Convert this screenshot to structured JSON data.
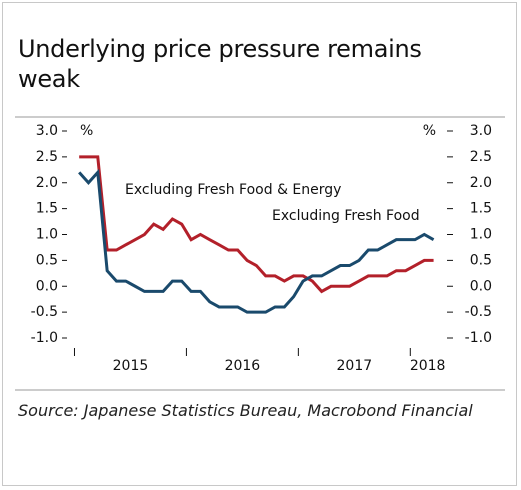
{
  "chart_data": {
    "type": "line",
    "title": "Underlying price pressure remains weak",
    "source": "Source: Japanese Statistics Bureau, Macrobond Financial",
    "y_unit": "%",
    "y2_unit": "%",
    "grid": false,
    "xlim": [
      2014.96,
      2018.31
    ],
    "xticks": [
      2015,
      2016,
      2017,
      2018
    ],
    "ylim": [
      -1,
      3
    ],
    "yticks": [
      {
        "value": 3,
        "label": "3.0"
      },
      2.5,
      {
        "value": 2,
        "label": "2.0"
      },
      1.5,
      {
        "value": 1,
        "label": "1.0"
      },
      0.5,
      {
        "value": 0,
        "label": "0.0"
      },
      -0.5,
      {
        "value": -1,
        "label": "-1.0"
      }
    ],
    "y2lim": [
      -1,
      3
    ],
    "y2ticks": [
      {
        "value": 3,
        "label": "3.0"
      },
      2.5,
      {
        "value": 2,
        "label": "2.0"
      },
      1.5,
      {
        "value": 1,
        "label": "1.0"
      },
      0.5,
      {
        "value": 0,
        "label": "0.0"
      },
      -0.5,
      {
        "value": -1,
        "label": "-1.0"
      }
    ],
    "x": [
      2015.042,
      2015.125,
      2015.208,
      2015.292,
      2015.375,
      2015.458,
      2015.542,
      2015.625,
      2015.708,
      2015.792,
      2015.875,
      2015.958,
      2016.042,
      2016.125,
      2016.208,
      2016.292,
      2016.375,
      2016.458,
      2016.542,
      2016.625,
      2016.708,
      2016.792,
      2016.875,
      2016.958,
      2017.042,
      2017.125,
      2017.208,
      2017.292,
      2017.375,
      2017.458,
      2017.542,
      2017.625,
      2017.708,
      2017.792,
      2017.875,
      2017.958,
      2018.042,
      2018.125,
      2018.208
    ],
    "series": [
      {
        "name": "Excluding Fresh Food & Energy",
        "color": "#b3202a",
        "values": [
          2.5,
          2.5,
          2.5,
          0.7,
          0.7,
          0.8,
          0.9,
          1.0,
          1.2,
          1.1,
          1.3,
          1.2,
          0.9,
          1.0,
          0.9,
          0.8,
          0.7,
          0.7,
          0.5,
          0.4,
          0.2,
          0.2,
          0.1,
          0.2,
          0.2,
          0.1,
          -0.1,
          0.0,
          0.0,
          0.0,
          0.1,
          0.2,
          0.2,
          0.2,
          0.3,
          0.3,
          0.4,
          0.5,
          0.5
        ]
      },
      {
        "name": "Excluding Fresh Food",
        "color": "#1a4a6c",
        "values": [
          2.2,
          2.0,
          2.2,
          0.3,
          0.1,
          0.1,
          0.0,
          -0.1,
          -0.1,
          -0.1,
          0.1,
          0.1,
          -0.1,
          -0.1,
          -0.3,
          -0.4,
          -0.4,
          -0.4,
          -0.5,
          -0.5,
          -0.5,
          -0.4,
          -0.4,
          -0.2,
          0.1,
          0.2,
          0.2,
          0.3,
          0.4,
          0.4,
          0.5,
          0.7,
          0.7,
          0.8,
          0.9,
          0.9,
          0.9,
          1.0,
          0.9
        ]
      }
    ]
  }
}
